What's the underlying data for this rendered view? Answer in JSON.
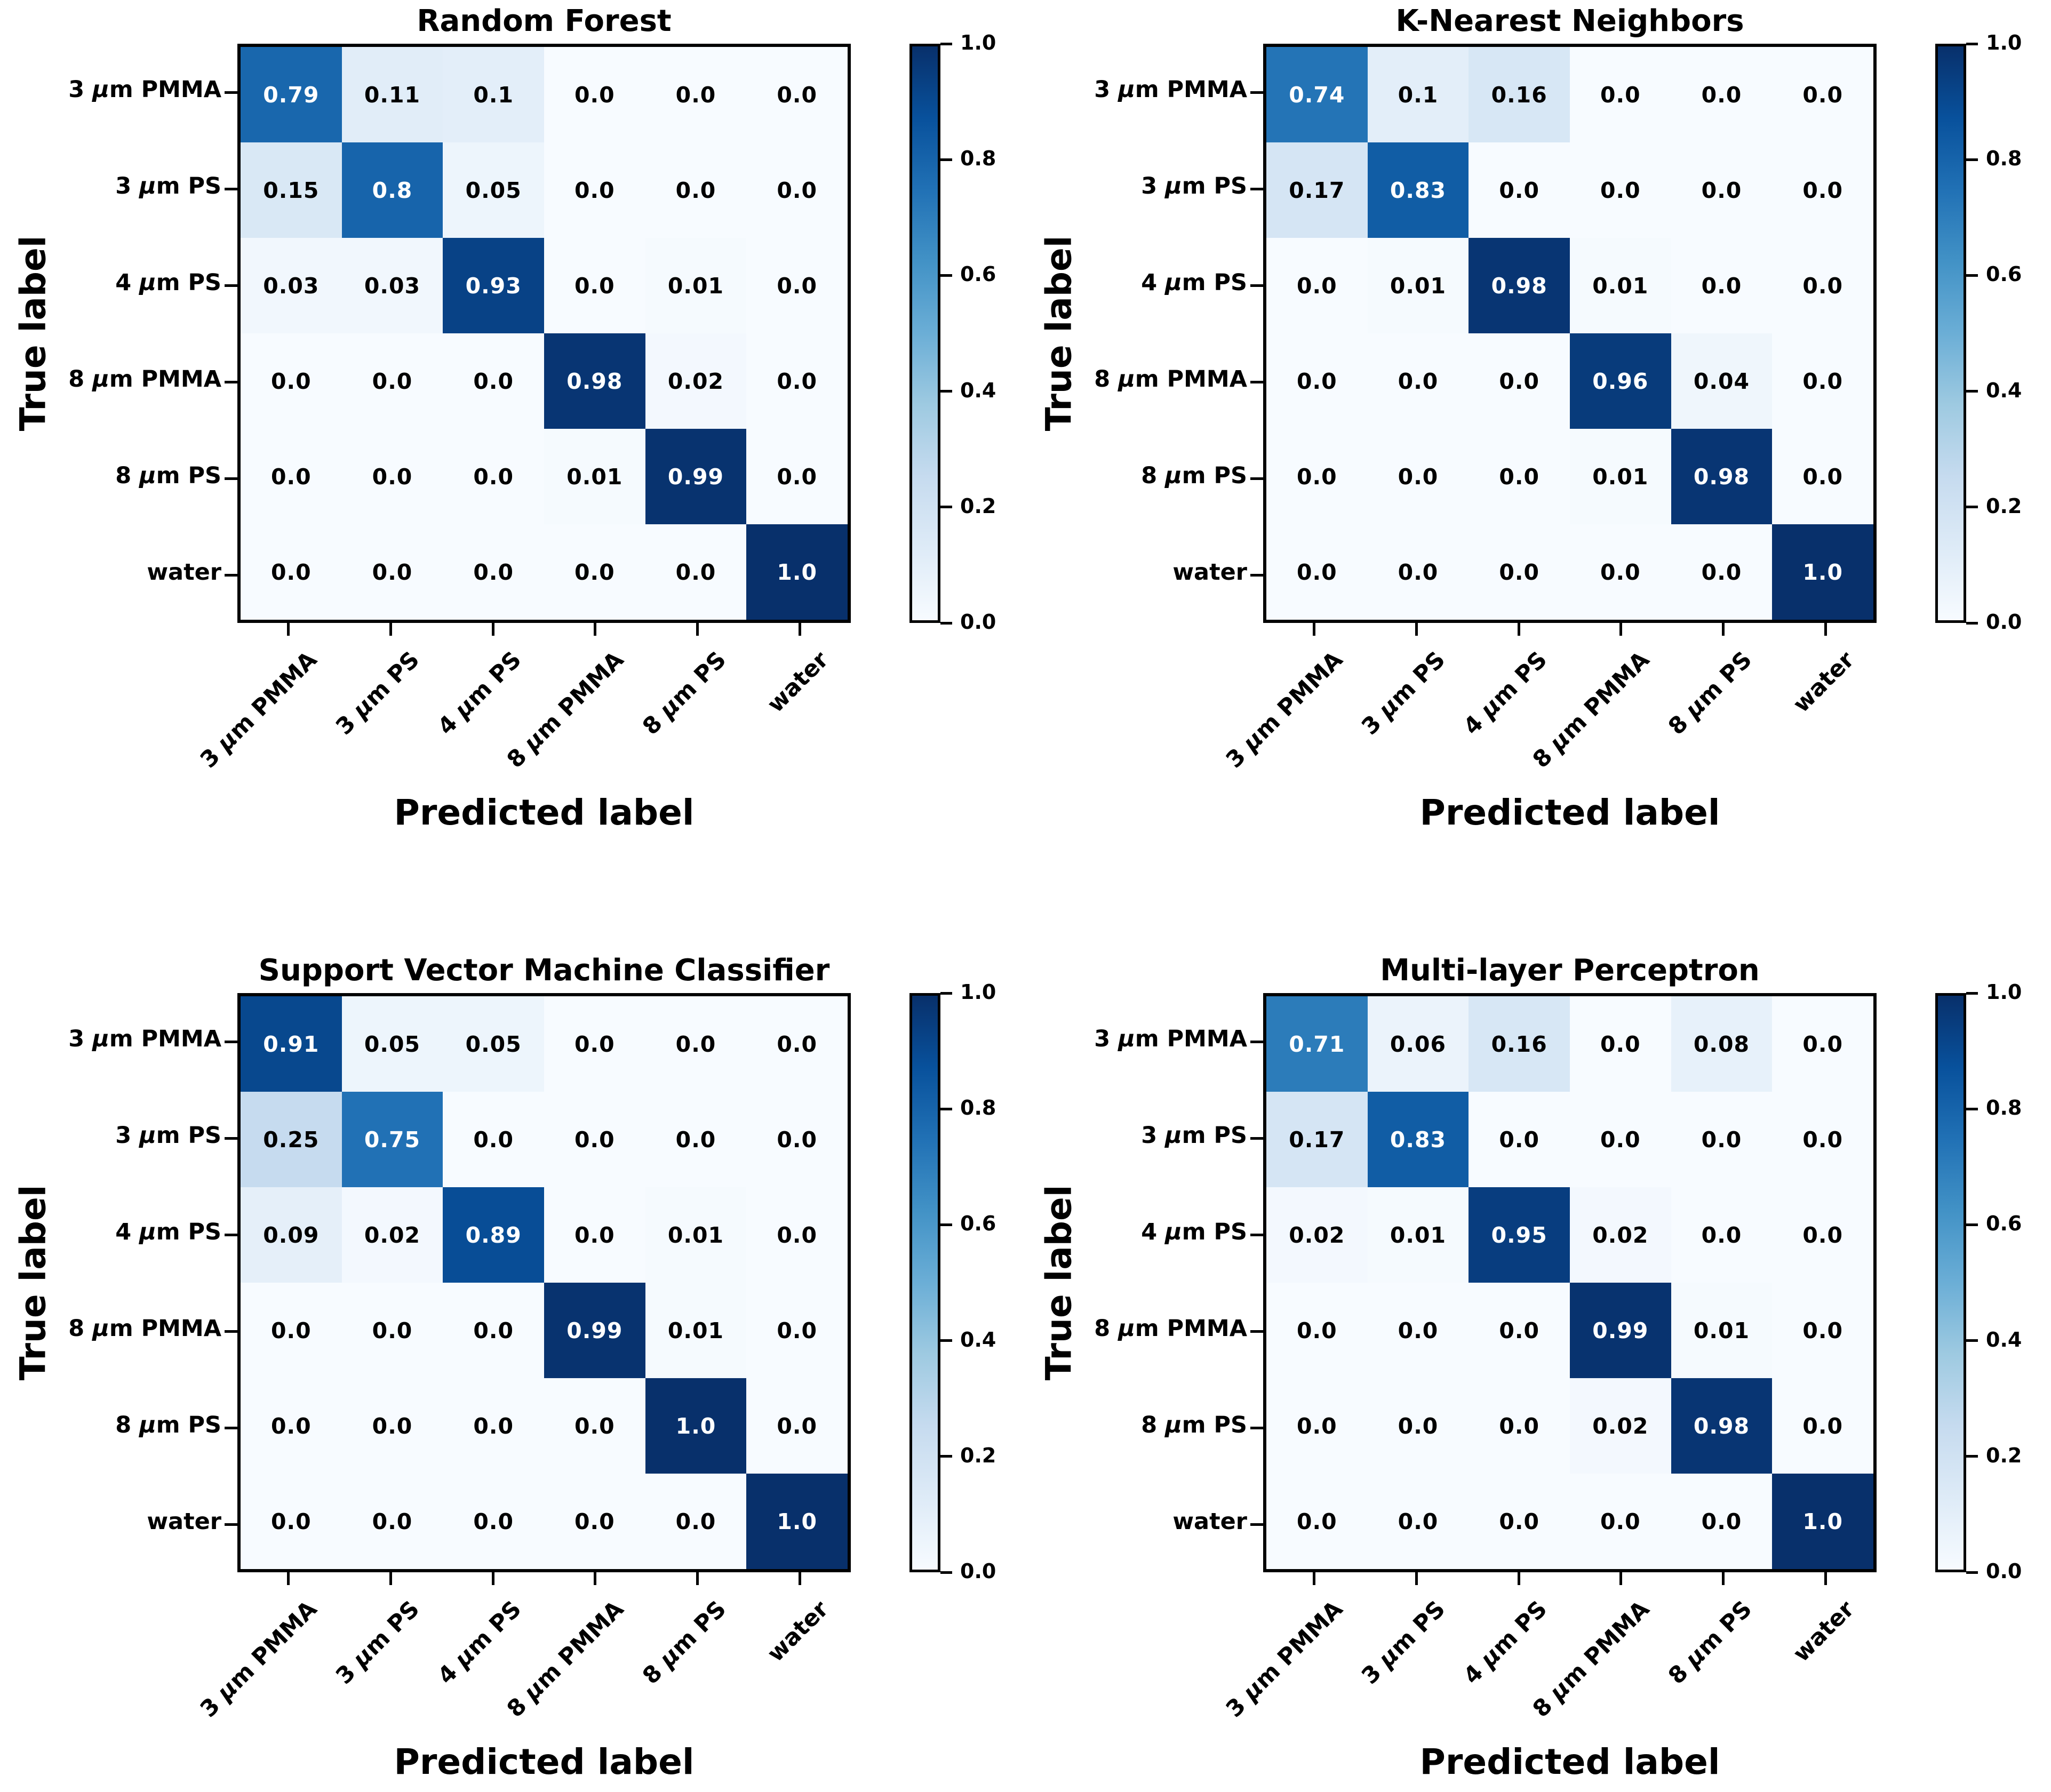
{
  "figure": {
    "background": "#ffffff",
    "x_axis_title": "Predicted label",
    "y_axis_title": "True label",
    "categories": [
      "3 μm PMMA",
      "3 μm PS",
      "4 μm PS",
      "8 μm PMMA",
      "8 μm PS",
      "water"
    ],
    "colorbar": {
      "ticks": [
        "1.0",
        "0.8",
        "0.6",
        "0.4",
        "0.2",
        "0.0"
      ],
      "tick_values": [
        1.0,
        0.8,
        0.6,
        0.4,
        0.2,
        0.0
      ],
      "orientation": "vertical",
      "position": "right"
    }
  },
  "chart_data": [
    {
      "type": "heatmap",
      "title": "Random Forest",
      "xlabel": "Predicted label",
      "ylabel": "True label",
      "x_categories": [
        "3 μm PMMA",
        "3 μm PS",
        "4 μm PS",
        "8 μm PMMA",
        "8 μm PS",
        "water"
      ],
      "y_categories": [
        "3 μm PMMA",
        "3 μm PS",
        "4 μm PS",
        "8 μm PMMA",
        "8 μm PS",
        "water"
      ],
      "values": [
        [
          "0.79",
          "0.11",
          "0.1",
          "0.0",
          "0.0",
          "0.0"
        ],
        [
          "0.15",
          "0.8",
          "0.05",
          "0.0",
          "0.0",
          "0.0"
        ],
        [
          "0.03",
          "0.03",
          "0.93",
          "0.0",
          "0.01",
          "0.0"
        ],
        [
          "0.0",
          "0.0",
          "0.0",
          "0.98",
          "0.02",
          "0.0"
        ],
        [
          "0.0",
          "0.0",
          "0.0",
          "0.01",
          "0.99",
          "0.0"
        ],
        [
          "0.0",
          "0.0",
          "0.0",
          "0.0",
          "0.0",
          "1.0"
        ]
      ],
      "vmin": 0.0,
      "vmax": 1.0,
      "colormap": "Blues",
      "grid": false,
      "legend_position": "right-colorbar"
    },
    {
      "type": "heatmap",
      "title": "K-Nearest Neighbors",
      "xlabel": "Predicted label",
      "ylabel": "True label",
      "x_categories": [
        "3 μm PMMA",
        "3 μm PS",
        "4 μm PS",
        "8 μm PMMA",
        "8 μm PS",
        "water"
      ],
      "y_categories": [
        "3 μm PMMA",
        "3 μm PS",
        "4 μm PS",
        "8 μm PMMA",
        "8 μm PS",
        "water"
      ],
      "values": [
        [
          "0.74",
          "0.1",
          "0.16",
          "0.0",
          "0.0",
          "0.0"
        ],
        [
          "0.17",
          "0.83",
          "0.0",
          "0.0",
          "0.0",
          "0.0"
        ],
        [
          "0.0",
          "0.01",
          "0.98",
          "0.01",
          "0.0",
          "0.0"
        ],
        [
          "0.0",
          "0.0",
          "0.0",
          "0.96",
          "0.04",
          "0.0"
        ],
        [
          "0.0",
          "0.0",
          "0.0",
          "0.01",
          "0.98",
          "0.0"
        ],
        [
          "0.0",
          "0.0",
          "0.0",
          "0.0",
          "0.0",
          "1.0"
        ]
      ],
      "vmin": 0.0,
      "vmax": 1.0,
      "colormap": "Blues",
      "grid": false,
      "legend_position": "right-colorbar"
    },
    {
      "type": "heatmap",
      "title": "Support Vector Machine Classifier",
      "xlabel": "Predicted label",
      "ylabel": "True label",
      "x_categories": [
        "3 μm PMMA",
        "3 μm PS",
        "4 μm PS",
        "8 μm PMMA",
        "8 μm PS",
        "water"
      ],
      "y_categories": [
        "3 μm PMMA",
        "3 μm PS",
        "4 μm PS",
        "8 μm PMMA",
        "8 μm PS",
        "water"
      ],
      "values": [
        [
          "0.91",
          "0.05",
          "0.05",
          "0.0",
          "0.0",
          "0.0"
        ],
        [
          "0.25",
          "0.75",
          "0.0",
          "0.0",
          "0.0",
          "0.0"
        ],
        [
          "0.09",
          "0.02",
          "0.89",
          "0.0",
          "0.01",
          "0.0"
        ],
        [
          "0.0",
          "0.0",
          "0.0",
          "0.99",
          "0.01",
          "0.0"
        ],
        [
          "0.0",
          "0.0",
          "0.0",
          "0.0",
          "1.0",
          "0.0"
        ],
        [
          "0.0",
          "0.0",
          "0.0",
          "0.0",
          "0.0",
          "1.0"
        ]
      ],
      "vmin": 0.0,
      "vmax": 1.0,
      "colormap": "Blues",
      "grid": false,
      "legend_position": "right-colorbar"
    },
    {
      "type": "heatmap",
      "title": "Multi-layer Perceptron",
      "xlabel": "Predicted label",
      "ylabel": "True label",
      "x_categories": [
        "3 μm PMMA",
        "3 μm PS",
        "4 μm PS",
        "8 μm PMMA",
        "8 μm PS",
        "water"
      ],
      "y_categories": [
        "3 μm PMMA",
        "3 μm PS",
        "4 μm PS",
        "8 μm PMMA",
        "8 μm PS",
        "water"
      ],
      "values": [
        [
          "0.71",
          "0.06",
          "0.16",
          "0.0",
          "0.08",
          "0.0"
        ],
        [
          "0.17",
          "0.83",
          "0.0",
          "0.0",
          "0.0",
          "0.0"
        ],
        [
          "0.02",
          "0.01",
          "0.95",
          "0.02",
          "0.0",
          "0.0"
        ],
        [
          "0.0",
          "0.0",
          "0.0",
          "0.99",
          "0.01",
          "0.0"
        ],
        [
          "0.0",
          "0.0",
          "0.0",
          "0.02",
          "0.98",
          "0.0"
        ],
        [
          "0.0",
          "0.0",
          "0.0",
          "0.0",
          "0.0",
          "1.0"
        ]
      ],
      "vmin": 0.0,
      "vmax": 1.0,
      "colormap": "Blues",
      "grid": false,
      "legend_position": "right-colorbar"
    }
  ],
  "colors": {
    "background": "#ffffff",
    "axis_and_text": "#000000",
    "cell_text_dark": "#000000",
    "cell_text_light": "#ffffff",
    "colormap_blues_anchors": [
      "#f7fbff",
      "#deebf7",
      "#c6dbef",
      "#9ecae1",
      "#6baed6",
      "#4292c6",
      "#2171b5",
      "#08519c",
      "#08306b"
    ]
  }
}
